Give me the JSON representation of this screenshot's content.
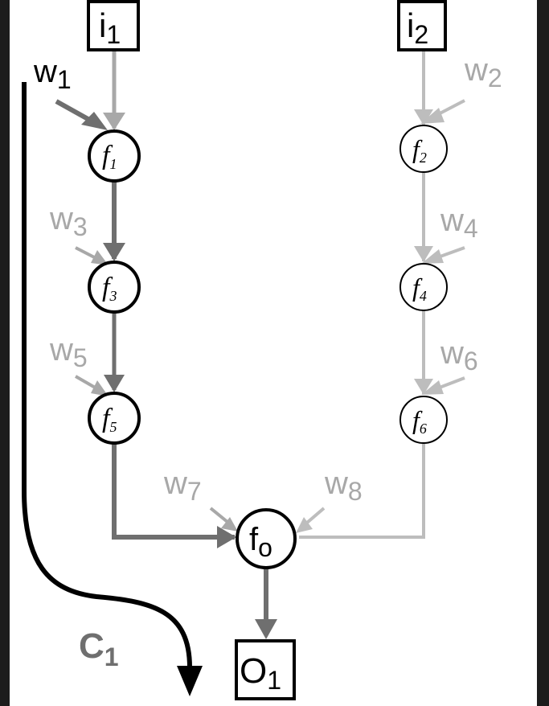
{
  "colors": {
    "background": "#ffffff",
    "frame": "#1c1c1c",
    "dark_edge": "#6f6f6f",
    "light_edge": "#bdbdbd",
    "black": "#000000",
    "weight_dark": "#000000",
    "weight_light": "#a8a8a8"
  },
  "inputs": [
    {
      "id": "i1",
      "base": "i",
      "sub": "1"
    },
    {
      "id": "i2",
      "base": "i",
      "sub": "2"
    }
  ],
  "output": {
    "base": "O",
    "sub": "1"
  },
  "functions": [
    {
      "id": "f1",
      "base": "f",
      "sub": "1"
    },
    {
      "id": "f2",
      "base": "f",
      "sub": "2"
    },
    {
      "id": "f3",
      "base": "f",
      "sub": "3"
    },
    {
      "id": "f4",
      "base": "f",
      "sub": "4"
    },
    {
      "id": "f5",
      "base": "f",
      "sub": "5"
    },
    {
      "id": "f6",
      "base": "f",
      "sub": "6"
    },
    {
      "id": "fo",
      "base": "f",
      "sub": "o"
    }
  ],
  "weights": [
    {
      "id": "w1",
      "base": "w",
      "sub": "1"
    },
    {
      "id": "w2",
      "base": "w",
      "sub": "2"
    },
    {
      "id": "w3",
      "base": "w",
      "sub": "3"
    },
    {
      "id": "w4",
      "base": "w",
      "sub": "4"
    },
    {
      "id": "w5",
      "base": "w",
      "sub": "5"
    },
    {
      "id": "w6",
      "base": "w",
      "sub": "6"
    },
    {
      "id": "w7",
      "base": "w",
      "sub": "7"
    },
    {
      "id": "w8",
      "base": "w",
      "sub": "8"
    }
  ],
  "cost": {
    "base": "C",
    "sub": "1"
  }
}
